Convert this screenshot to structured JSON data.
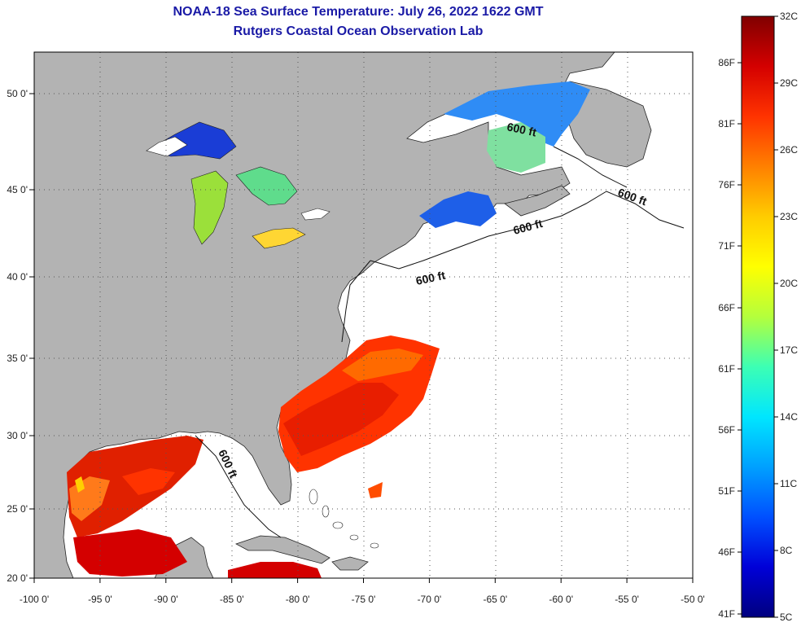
{
  "title": {
    "line1": "NOAA-18 Sea Surface Temperature:  July 26, 2022 1622 GMT",
    "line2": "Rutgers Coastal Ocean Observation Lab"
  },
  "map": {
    "lon_range": [
      -100,
      -50
    ],
    "lat_range": [
      20,
      52.5
    ],
    "lon_ticks": [
      "-100 0'",
      "-95 0'",
      "-90 0'",
      "-85 0'",
      "-80 0'",
      "-75 0'",
      "-70 0'",
      "-65 0'",
      "-60 0'",
      "-55 0'",
      "-50 0'"
    ],
    "lat_ticks": [
      "50 0'",
      "45 0'",
      "40 0'",
      "35 0'",
      "30 0'",
      "25 0'",
      "20 0'"
    ],
    "isobath_labels": [
      "600 ft",
      "600 ft",
      "600 ft",
      "600 ft",
      "600 ft"
    ],
    "land_color": "#b3b3b3",
    "ocean_color": "#ffffff",
    "grid": "dotted"
  },
  "colorbar": {
    "celsius_labels": [
      "32C",
      "29C",
      "26C",
      "23C",
      "20C",
      "17C",
      "14C",
      "11C",
      "8C",
      "5C"
    ],
    "fahrenheit_labels": [
      "86F",
      "81F",
      "76F",
      "71F",
      "66F",
      "61F",
      "56F",
      "51F",
      "46F",
      "41F"
    ],
    "colors": [
      "#800000",
      "#d40000",
      "#ff3300",
      "#ff8000",
      "#ffcc00",
      "#ffff00",
      "#b4ff3c",
      "#3cffb4",
      "#00e6ff",
      "#00a0ff",
      "#0050ff",
      "#0000d8",
      "#00007f"
    ]
  }
}
